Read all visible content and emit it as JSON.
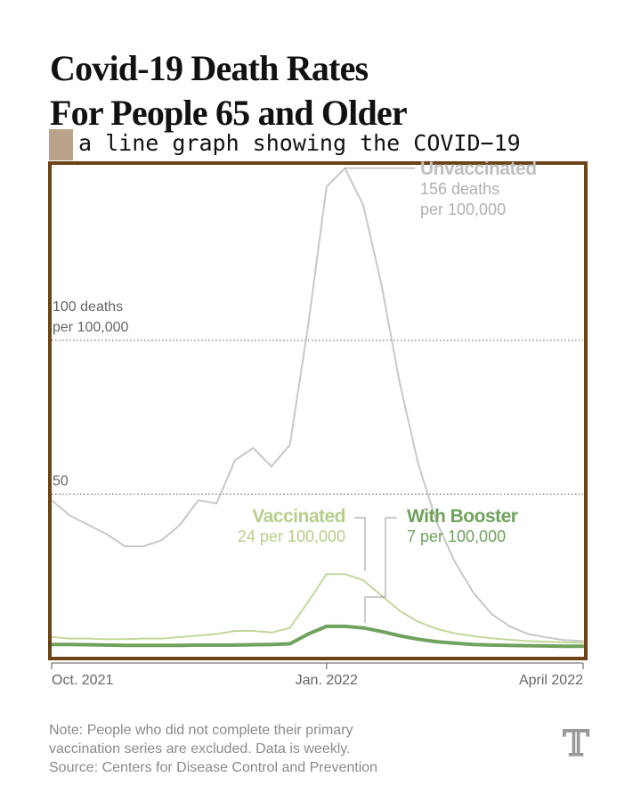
{
  "title_lines": [
    "Covid-19 Death Rates",
    "For People 65 and Older"
  ],
  "caption": "a line graph showing the COVID−19",
  "chart_data": {
    "type": "line",
    "title": "Covid-19 Death Rates For People 65 and Older",
    "xlabel": "",
    "ylabel": "",
    "ylim": [
      0,
      160
    ],
    "grid_lines": [
      100,
      50
    ],
    "x_ticks": [
      "Oct. 2021",
      "Jan. 2022",
      "April 2022"
    ],
    "y_tick_labels": [
      {
        "value": 100,
        "lines": [
          "100 deaths",
          "per 100,000"
        ]
      },
      {
        "value": 50,
        "lines": [
          "50"
        ]
      }
    ],
    "x": [
      "2021-09-18",
      "2021-09-25",
      "2021-10-02",
      "2021-10-09",
      "2021-10-16",
      "2021-10-23",
      "2021-10-30",
      "2021-11-06",
      "2021-11-13",
      "2021-11-20",
      "2021-11-27",
      "2021-12-04",
      "2021-12-11",
      "2021-12-18",
      "2021-12-25",
      "2022-01-01",
      "2022-01-08",
      "2022-01-15",
      "2022-01-22",
      "2022-01-29",
      "2022-02-05",
      "2022-02-12",
      "2022-02-19",
      "2022-02-26",
      "2022-03-05",
      "2022-03-12",
      "2022-03-19",
      "2022-03-26",
      "2022-04-02",
      "2022-04-09"
    ],
    "series": [
      {
        "name": "Unvaccinated",
        "color": "#c8c8c8",
        "width": 2,
        "values": [
          48,
          43,
          40,
          37,
          33,
          33,
          35,
          40,
          48,
          47,
          61,
          65,
          59,
          66,
          105,
          150,
          156,
          144,
          118,
          86,
          60,
          41,
          28,
          18,
          11,
          7,
          4.5,
          3.4,
          2.5,
          2.2
        ]
      },
      {
        "name": "Vaccinated",
        "color": "#c2d89a",
        "width": 2,
        "values": [
          3.5,
          3,
          3,
          2.8,
          2.8,
          3,
          3,
          3.5,
          4,
          4.5,
          5.5,
          5.5,
          5,
          6.5,
          15,
          24,
          24,
          22,
          17,
          12,
          8.5,
          6.2,
          4.7,
          3.8,
          3.1,
          2.6,
          2.2,
          2,
          1.8,
          1.6
        ]
      },
      {
        "name": "With Booster",
        "color": "#6fa25c",
        "width": 4,
        "values": [
          1.1,
          1.1,
          1,
          0.9,
          0.8,
          0.8,
          0.8,
          0.8,
          0.9,
          0.9,
          0.9,
          1,
          1.1,
          1.3,
          4.5,
          7,
          7,
          6.5,
          5.3,
          3.9,
          2.8,
          2,
          1.5,
          1.1,
          0.9,
          0.8,
          0.7,
          0.6,
          0.5,
          0.5
        ]
      }
    ],
    "annotations": [
      {
        "series": "Unvaccinated",
        "head": "Unvaccinated",
        "sub": [
          "156 deaths",
          "per 100,000"
        ]
      },
      {
        "series": "Vaccinated",
        "head": "Vaccinated",
        "sub": [
          "24 per 100,000"
        ]
      },
      {
        "series": "With Booster",
        "head": "With Booster",
        "sub": [
          "7 per 100,000"
        ]
      }
    ]
  },
  "note_lines": [
    "Note: People who did not complete their primary",
    "vaccination series are excluded. Data is weekly.",
    "Source: Centers for Disease Control and Prevention"
  ],
  "logo_glyph": "𝕋"
}
